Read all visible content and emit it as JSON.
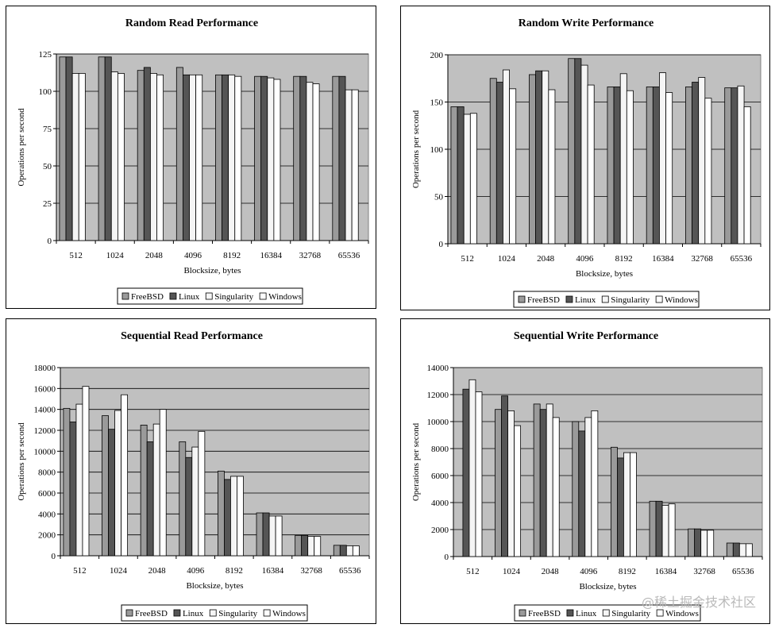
{
  "colors": {
    "FreeBSD": "#9a9a9a",
    "Linux": "#555555",
    "Singularity": "#f5f5f5",
    "Windows": "#ffffff",
    "plot_bg": "#c0c0c0"
  },
  "watermark": "@稀土掘金技术社区",
  "chart_data": [
    {
      "type": "bar",
      "title": "Random Read Performance",
      "xlabel": "Blocksize, bytes",
      "ylabel": "Operations per second",
      "categories": [
        "512",
        "1024",
        "2048",
        "4096",
        "8192",
        "16384",
        "32768",
        "65536"
      ],
      "ylim": [
        0,
        125
      ],
      "yticks": [
        0,
        25,
        50,
        75,
        100,
        125
      ],
      "grid": true,
      "legend": "bottom",
      "series": [
        {
          "name": "FreeBSD",
          "values": [
            123,
            123,
            114,
            116,
            111,
            110,
            110,
            110
          ]
        },
        {
          "name": "Linux",
          "values": [
            123,
            123,
            116,
            111,
            111,
            110,
            110,
            110
          ]
        },
        {
          "name": "Singularity",
          "values": [
            112,
            113,
            112,
            111,
            111,
            109,
            106,
            101
          ]
        },
        {
          "name": "Windows",
          "values": [
            112,
            112,
            111,
            111,
            110,
            108,
            105,
            101
          ]
        }
      ]
    },
    {
      "type": "bar",
      "title": "Random Write Performance",
      "xlabel": "Blocksize, bytes",
      "ylabel": "Operations per second",
      "categories": [
        "512",
        "1024",
        "2048",
        "4096",
        "8192",
        "16384",
        "32768",
        "65536"
      ],
      "ylim": [
        0,
        200
      ],
      "yticks": [
        0,
        50,
        100,
        150,
        200
      ],
      "grid": true,
      "legend": "bottom",
      "series": [
        {
          "name": "FreeBSD",
          "values": [
            145,
            175,
            179,
            196,
            166,
            166,
            166,
            165
          ]
        },
        {
          "name": "Linux",
          "values": [
            145,
            171,
            183,
            196,
            166,
            166,
            171,
            165
          ]
        },
        {
          "name": "Singularity",
          "values": [
            137,
            184,
            183,
            189,
            180,
            181,
            176,
            167
          ]
        },
        {
          "name": "Windows",
          "values": [
            138,
            164,
            163,
            168,
            162,
            160,
            154,
            145
          ]
        }
      ]
    },
    {
      "type": "bar",
      "title": "Sequential Read Performance",
      "xlabel": "Blocksize, bytes",
      "ylabel": "Operations per second",
      "categories": [
        "512",
        "1024",
        "2048",
        "4096",
        "8192",
        "16384",
        "32768",
        "65536"
      ],
      "ylim": [
        0,
        18000
      ],
      "yticks": [
        0,
        2000,
        4000,
        6000,
        8000,
        10000,
        12000,
        14000,
        16000,
        18000
      ],
      "grid": true,
      "legend": "bottom",
      "series": [
        {
          "name": "FreeBSD",
          "values": [
            14100,
            13400,
            12500,
            10900,
            8100,
            4100,
            1950,
            1000
          ]
        },
        {
          "name": "Linux",
          "values": [
            12800,
            12100,
            10900,
            9400,
            7300,
            4100,
            1950,
            1000
          ]
        },
        {
          "name": "Singularity",
          "values": [
            14500,
            13900,
            12600,
            10400,
            7600,
            3800,
            1850,
            950
          ]
        },
        {
          "name": "Windows",
          "values": [
            16200,
            15400,
            14000,
            11900,
            7600,
            3800,
            1850,
            950
          ]
        }
      ]
    },
    {
      "type": "bar",
      "title": "Sequential Write Performance",
      "xlabel": "Blocksize, bytes",
      "ylabel": "Operations per second",
      "categories": [
        "512",
        "1024",
        "2048",
        "4096",
        "8192",
        "16384",
        "32768",
        "65536"
      ],
      "ylim": [
        0,
        14000
      ],
      "yticks": [
        0,
        2000,
        4000,
        6000,
        8000,
        10000,
        12000,
        14000
      ],
      "grid": true,
      "legend": "bottom",
      "series": [
        {
          "name": "FreeBSD",
          "values": [
            0,
            10900,
            11300,
            10000,
            8100,
            4100,
            2050,
            1000
          ]
        },
        {
          "name": "Linux",
          "values": [
            12400,
            11900,
            10900,
            9300,
            7300,
            4100,
            2050,
            1000
          ]
        },
        {
          "name": "Singularity",
          "values": [
            13100,
            10800,
            11300,
            10300,
            7700,
            3800,
            1950,
            950
          ]
        },
        {
          "name": "Windows",
          "values": [
            12200,
            9700,
            10300,
            10800,
            7700,
            3900,
            1950,
            950
          ]
        }
      ]
    }
  ]
}
